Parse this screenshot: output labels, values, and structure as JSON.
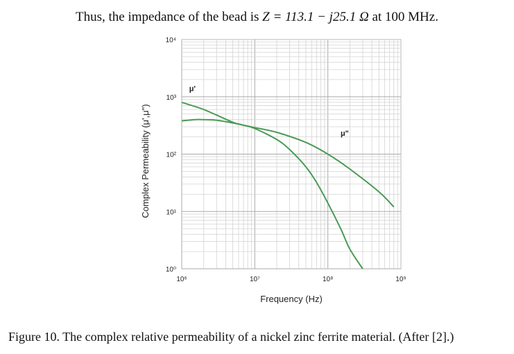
{
  "intro": {
    "prefix": "Thus, the impedance of the bead is ",
    "equation": "Z = 113.1 − j25.1 Ω",
    "suffix": " at 100 MHz."
  },
  "caption": "Figure 10. The complex relative permeability of a nickel zinc ferrite material. (After [2].)",
  "chart_data": {
    "type": "line",
    "title": "",
    "xlabel": "Frequency (Hz)",
    "ylabel": "Complex Permeability (μ',μ\")",
    "x_scale": "log",
    "y_scale": "log",
    "xlim": [
      1000000,
      1000000000
    ],
    "ylim": [
      1,
      10000
    ],
    "grid": true,
    "x_tick_labels": [
      "10⁶",
      "10⁷",
      "10⁸",
      "10⁹"
    ],
    "y_tick_labels": [
      "10⁰",
      "10¹",
      "10²",
      "10³",
      "10⁴"
    ],
    "series": [
      {
        "name": "μ'",
        "color": "#4a9a55",
        "label_at": [
          1400000,
          1250
        ],
        "x": [
          1000000,
          1500000,
          2000000,
          3000000,
          5000000,
          7000000,
          10000000,
          20000000,
          30000000,
          50000000,
          70000000,
          100000000,
          150000000,
          200000000,
          300000000
        ],
        "y": [
          800,
          680,
          600,
          480,
          360,
          320,
          280,
          180,
          120,
          60,
          32,
          14,
          5,
          2.2,
          1.0
        ]
      },
      {
        "name": "μ\"",
        "color": "#4a9a55",
        "label_at": [
          170000000,
          210
        ],
        "x": [
          1000000,
          1500000,
          2000000,
          3000000,
          5000000,
          7000000,
          10000000,
          20000000,
          50000000,
          100000000,
          200000000,
          500000000,
          800000000
        ],
        "y": [
          380,
          400,
          400,
          390,
          350,
          320,
          290,
          240,
          160,
          100,
          55,
          22,
          12
        ]
      }
    ]
  }
}
